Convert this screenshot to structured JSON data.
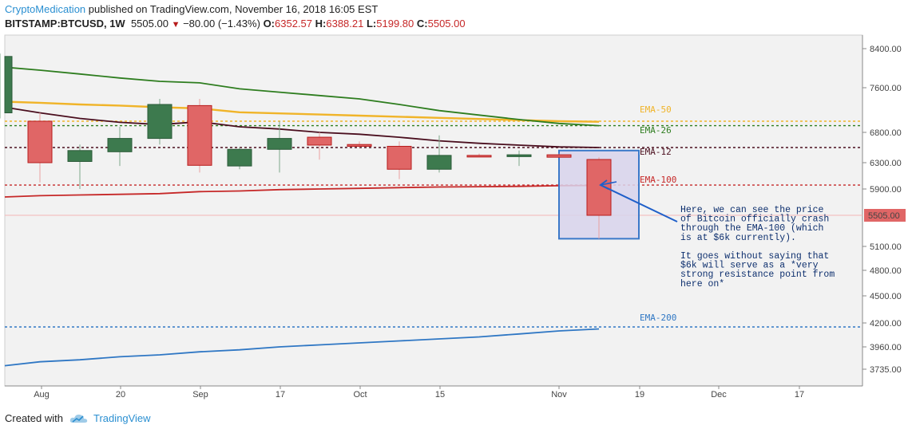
{
  "header": {
    "author": "CryptoMedication",
    "published": " published on TradingView.com, November 16, 2018 16:05 EST",
    "symbol": "BITSTAMP:BTCUSD, 1W",
    "last": "5505.00",
    "change": "−80.00 (−1.43%)",
    "o_label": "O:",
    "o_value": "6352.57",
    "h_label": "H:",
    "h_value": "6388.21",
    "l_label": "L:",
    "l_value": "5199.80",
    "c_label": "C:",
    "c_value": "5505.00"
  },
  "footer": {
    "created_with": "Created with",
    "brand": "TradingView"
  },
  "colors": {
    "bull": "#3d7a4e",
    "bear": "#e06666",
    "bear_border": "#b71c1c",
    "ema50": "#f0b429",
    "ema26": "#2e7d1f",
    "ema12": "#4a0e1e",
    "ema100": "#c62828",
    "ema200": "#2f77c4",
    "annot": "#1f5fc9",
    "highlight_fill": "#d8d4ec",
    "highlight_border": "#3a78c9"
  },
  "chart_data": {
    "type": "candlestick",
    "timeframe": "1W",
    "y_ticks": [
      3735,
      3960,
      4200,
      4500,
      4800,
      5100,
      5505,
      5900,
      6300,
      6800,
      7600,
      8400
    ],
    "y_tick_labels": [
      "3735.00",
      "3960.00",
      "4200.00",
      "4500.00",
      "4800.00",
      "5100.00",
      "5505.00",
      "5900.00",
      "6300.00",
      "6800.00",
      "7600.00",
      "8400.00"
    ],
    "x_ticks": [
      "Aug",
      "20",
      "Sep",
      "17",
      "Oct",
      "15",
      "Nov",
      "19",
      "Dec",
      "17"
    ],
    "current_price_label": "5505.00",
    "candles": [
      {
        "o": 7150,
        "h": 8300,
        "l": 7050,
        "c": 8240
      },
      {
        "o": 7000,
        "h": 7150,
        "l": 6000,
        "c": 6300
      },
      {
        "o": 6320,
        "h": 6600,
        "l": 5900,
        "c": 6500
      },
      {
        "o": 6480,
        "h": 6900,
        "l": 6250,
        "c": 6700
      },
      {
        "o": 6700,
        "h": 7400,
        "l": 6600,
        "c": 7300
      },
      {
        "o": 7280,
        "h": 7400,
        "l": 6150,
        "c": 6260
      },
      {
        "o": 6250,
        "h": 6550,
        "l": 6200,
        "c": 6520
      },
      {
        "o": 6520,
        "h": 7000,
        "l": 6150,
        "c": 6700
      },
      {
        "o": 6720,
        "h": 6800,
        "l": 6350,
        "c": 6590
      },
      {
        "o": 6600,
        "h": 6650,
        "l": 6550,
        "c": 6570
      },
      {
        "o": 6570,
        "h": 6650,
        "l": 6050,
        "c": 6200
      },
      {
        "o": 6200,
        "h": 6750,
        "l": 6150,
        "c": 6420
      },
      {
        "o": 6420,
        "h": 6450,
        "l": 6390,
        "c": 6410
      },
      {
        "o": 6400,
        "h": 6500,
        "l": 6250,
        "c": 6430
      },
      {
        "o": 6430,
        "h": 6450,
        "l": 6380,
        "c": 6390
      },
      {
        "o": 6352.57,
        "h": 6388.21,
        "l": 5199.8,
        "c": 5505
      }
    ],
    "emas": [
      {
        "name": "EMA-50",
        "level": 7000,
        "color": "#f0b429",
        "values": [
          7350,
          7330,
          7300,
          7280,
          7250,
          7230,
          7160,
          7140,
          7120,
          7100,
          7080,
          7060,
          7040,
          7020,
          7000,
          6990
        ]
      },
      {
        "name": "EMA-26",
        "level": 6920,
        "color": "#2e7d1f",
        "values": [
          8020,
          7960,
          7880,
          7800,
          7730,
          7700,
          7580,
          7520,
          7460,
          7400,
          7300,
          7190,
          7110,
          7030,
          6960,
          6920
        ]
      },
      {
        "name": "EMA-12",
        "level": 6550,
        "color": "#4a0e1e",
        "values": [
          7250,
          7150,
          7050,
          6980,
          6940,
          6990,
          6900,
          6860,
          6800,
          6770,
          6720,
          6660,
          6620,
          6590,
          6560,
          6550
        ]
      },
      {
        "name": "EMA-100",
        "level": 5960,
        "color": "#c62828",
        "values": [
          5780,
          5800,
          5810,
          5820,
          5830,
          5860,
          5870,
          5890,
          5900,
          5910,
          5920,
          5930,
          5935,
          5940,
          5950,
          5955
        ]
      },
      {
        "name": "EMA-200",
        "level": 4160,
        "color": "#2f77c4",
        "values": [
          3770,
          3810,
          3830,
          3860,
          3880,
          3910,
          3930,
          3960,
          3980,
          4000,
          4020,
          4040,
          4060,
          4090,
          4120,
          4140
        ]
      }
    ],
    "annotation_lines": [
      "Here, we can see the price",
      "of Bitcoin officially crash",
      "through the EMA-100 (which",
      "is at $6k currently).",
      "",
      "It goes without saying that",
      "$6k will serve as a *very",
      "strong resistance point from",
      "here on*"
    ]
  }
}
